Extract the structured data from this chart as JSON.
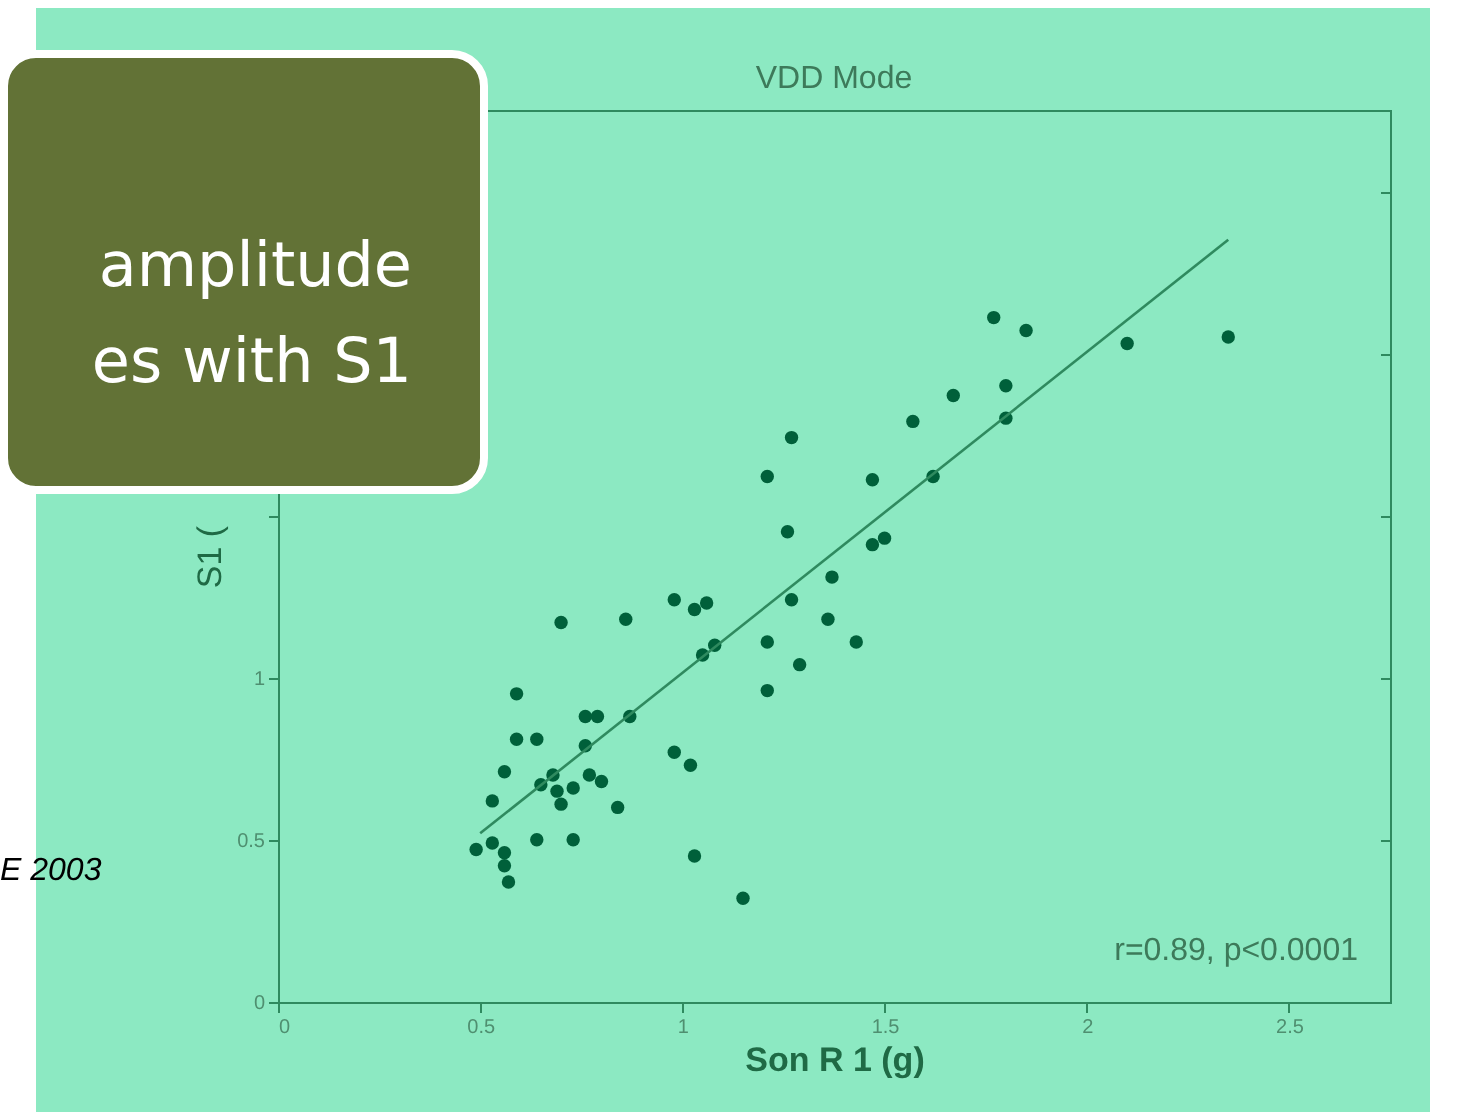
{
  "chart_data": {
    "type": "scatter",
    "title": "VDD Mode",
    "xlabel": "Son R 1 (g)",
    "ylabel": "S1 (",
    "annotations": [
      "amplitude",
      "es with S1",
      "E 2003",
      "r=0.89, p<0.0001"
    ],
    "xlim": [
      0,
      2.75
    ],
    "ylim": [
      0,
      2.75
    ],
    "xticks": [
      0,
      0.5,
      1,
      1.5,
      2,
      2.5
    ],
    "yticks": [
      0,
      0.5,
      1,
      {
        "value": 1.5,
        "label": null
      },
      {
        "value": 2,
        "label": null
      },
      {
        "value": 2.5,
        "label": null
      }
    ],
    "grid": false,
    "marker": "circle",
    "series": [
      {
        "color": "#00603a",
        "x": [
          1.77,
          1.85,
          2.1,
          2.35,
          1.67,
          1.8,
          1.8,
          1.57,
          1.27,
          1.21,
          1.47,
          1.62,
          1.26,
          1.47,
          1.5,
          1.37,
          1.27,
          1.36,
          1.43,
          1.21,
          1.29,
          1.21,
          0.98,
          1.03,
          1.06,
          0.7,
          0.86,
          1.05,
          1.08,
          0.59,
          0.59,
          0.64,
          0.76,
          0.79,
          0.87,
          0.56,
          0.65,
          0.68,
          0.69,
          0.76,
          0.77,
          0.73,
          0.7,
          0.8,
          0.84,
          0.53,
          0.64,
          0.73,
          0.49,
          0.53,
          0.56,
          0.56,
          0.57,
          0.98,
          1.02,
          1.03,
          1.15
        ],
        "values": [
          2.11,
          2.07,
          2.03,
          2.05,
          1.87,
          1.9,
          1.8,
          1.79,
          1.74,
          1.62,
          1.61,
          1.62,
          1.45,
          1.41,
          1.43,
          1.31,
          1.24,
          1.18,
          1.11,
          1.11,
          1.04,
          0.96,
          1.24,
          1.21,
          1.23,
          1.17,
          1.18,
          1.07,
          1.1,
          0.95,
          0.81,
          0.81,
          0.88,
          0.88,
          0.88,
          0.71,
          0.67,
          0.7,
          0.65,
          0.79,
          0.7,
          0.66,
          0.61,
          0.68,
          0.6,
          0.62,
          0.5,
          0.5,
          0.47,
          0.49,
          0.46,
          0.42,
          0.37,
          0.77,
          0.73,
          0.45,
          0.32
        ]
      },
      {
        "type": "line",
        "marker": "none",
        "color": "#2f8a5f",
        "x": [
          0.5,
          2.35
        ],
        "values": [
          0.52,
          2.35
        ]
      }
    ]
  }
}
